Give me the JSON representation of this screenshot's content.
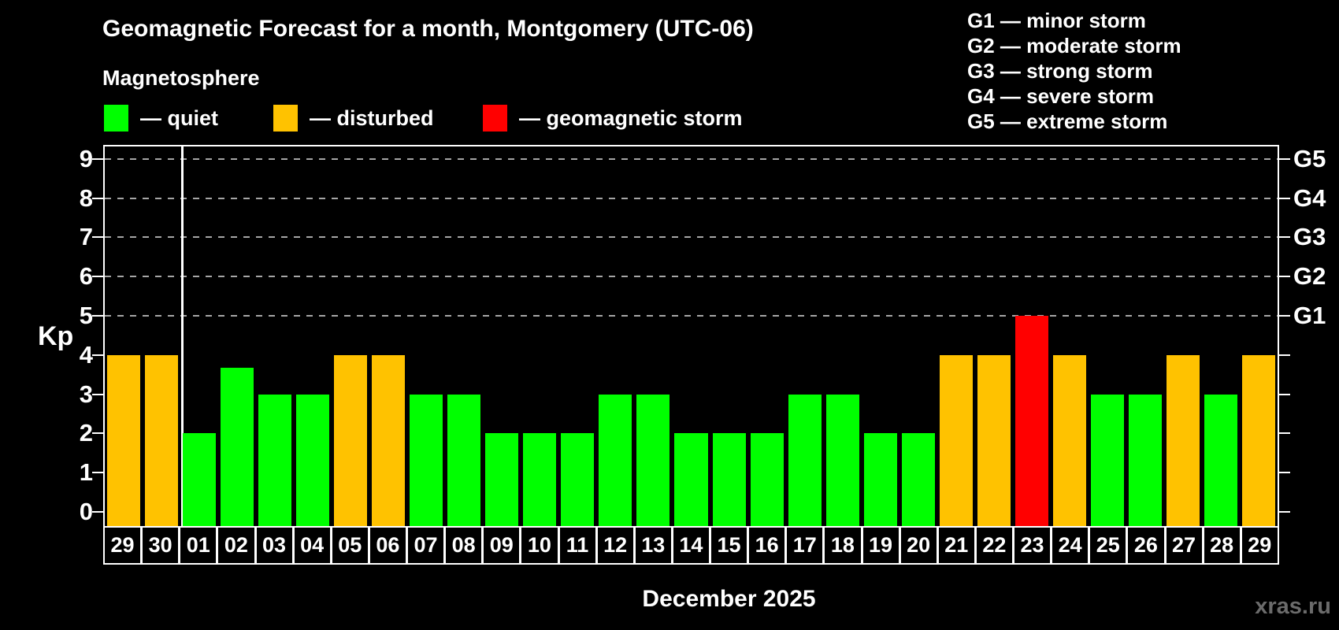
{
  "title": "Geomagnetic Forecast for a month, Montgomery (UTC-06)",
  "subtitle": "Magnetosphere",
  "legend": {
    "items": [
      {
        "label": "— quiet",
        "status": "quiet",
        "color": "#00ff00"
      },
      {
        "label": "— disturbed",
        "status": "disturbed",
        "color": "#ffc200"
      },
      {
        "label": "— geomagnetic storm",
        "status": "storm",
        "color": "#ff0000"
      }
    ]
  },
  "g_scale": {
    "items": [
      "G1 — minor storm",
      "G2 — moderate storm",
      "G3 — strong storm",
      "G4 — severe storm",
      "G5 — extreme storm"
    ]
  },
  "colors": {
    "quiet": "#00ff00",
    "disturbed": "#ffc200",
    "storm": "#ff0000",
    "background": "#000000",
    "axis": "#ffffff",
    "gridline": "#a6a6a6",
    "watermark": "#6b6b6b"
  },
  "watermark": "xras.ru",
  "chart_data": {
    "type": "bar",
    "title": "Geomagnetic Forecast for a month, Montgomery (UTC-06)",
    "ylabel": "Kp",
    "xlabel": "December 2025",
    "month_label": "December 2025",
    "ylim": [
      0,
      9
    ],
    "yticks": [
      0,
      1,
      2,
      3,
      4,
      5,
      6,
      7,
      8,
      9
    ],
    "gridlines_at": [
      5,
      6,
      7,
      8,
      9
    ],
    "grid": "dashed-horizontal-at-storm-levels-only",
    "legend_position": "top-left",
    "right_axis": [
      {
        "kp": 5,
        "label": "G1"
      },
      {
        "kp": 6,
        "label": "G2"
      },
      {
        "kp": 7,
        "label": "G3"
      },
      {
        "kp": 8,
        "label": "G4"
      },
      {
        "kp": 9,
        "label": "G5"
      }
    ],
    "separator_after_index": 1,
    "categories": [
      "29",
      "30",
      "01",
      "02",
      "03",
      "04",
      "05",
      "06",
      "07",
      "08",
      "09",
      "10",
      "11",
      "12",
      "13",
      "14",
      "15",
      "16",
      "17",
      "18",
      "19",
      "20",
      "21",
      "22",
      "23",
      "24",
      "25",
      "26",
      "27",
      "28",
      "29"
    ],
    "values": [
      4,
      4,
      2,
      3.67,
      3,
      3,
      4,
      4,
      3,
      3,
      2,
      2,
      2,
      3,
      3,
      2,
      2,
      2,
      3,
      3,
      2,
      2,
      4,
      4,
      5,
      4,
      3,
      3,
      4,
      3,
      4
    ],
    "statuses": [
      "disturbed",
      "disturbed",
      "quiet",
      "quiet",
      "quiet",
      "quiet",
      "disturbed",
      "disturbed",
      "quiet",
      "quiet",
      "quiet",
      "quiet",
      "quiet",
      "quiet",
      "quiet",
      "quiet",
      "quiet",
      "quiet",
      "quiet",
      "quiet",
      "quiet",
      "quiet",
      "disturbed",
      "disturbed",
      "storm",
      "disturbed",
      "quiet",
      "quiet",
      "disturbed",
      "quiet",
      "disturbed"
    ]
  }
}
